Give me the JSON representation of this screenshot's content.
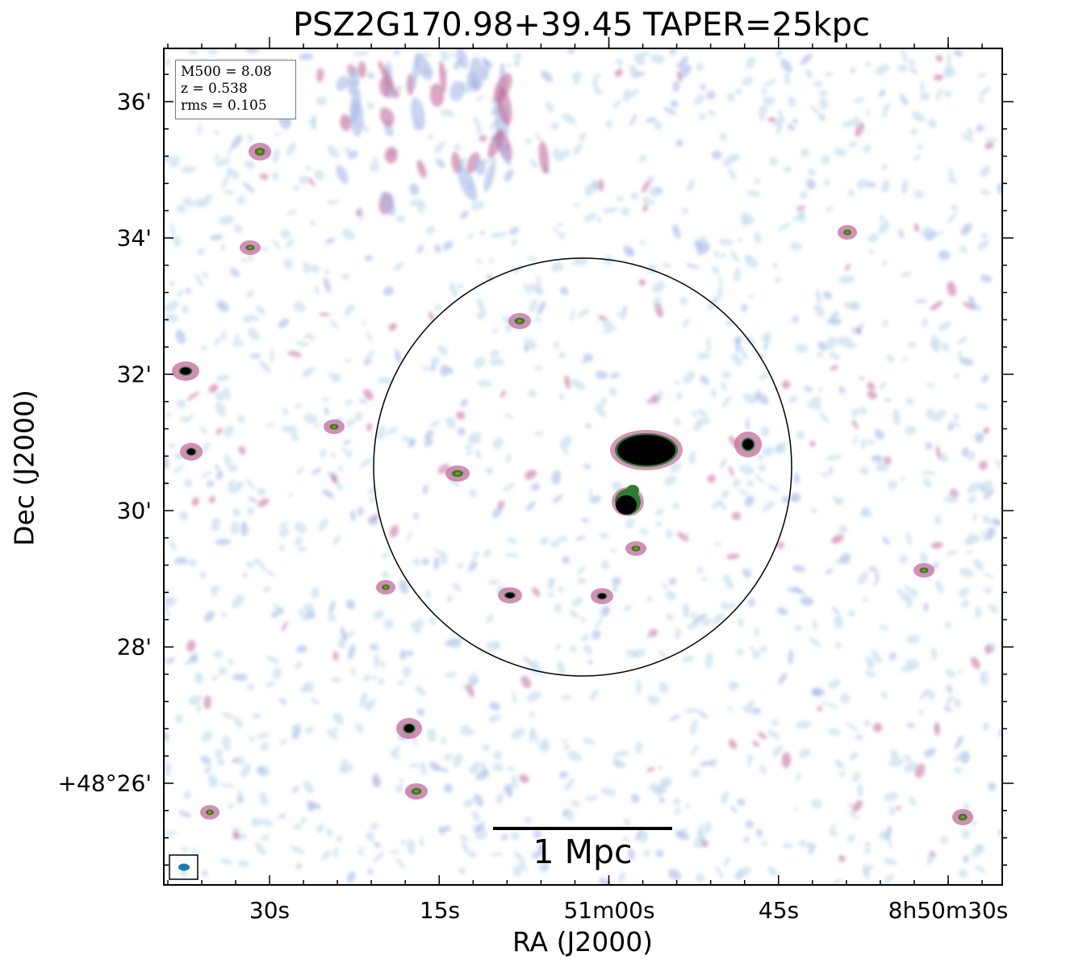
{
  "title": "PSZ2G170.98+39.45 TAPER=25kpc",
  "axes": {
    "xlabel": "RA (J2000)",
    "ylabel": "Dec (J2000)",
    "x_ticks": [
      "30s",
      "15s",
      "51m00s",
      "45s",
      "8h50m30s"
    ],
    "y_ticks": [
      "36'",
      "34'",
      "32'",
      "30'",
      "28'",
      "+48°26'"
    ]
  },
  "info": {
    "m500": "M500 = 8.08",
    "z": "z = 0.538",
    "rms": "rms = 0.105"
  },
  "scalebar": {
    "label": "1 Mpc"
  },
  "colors": {
    "noise_light": "#b9d6e8",
    "noise_blue": "#a8b8e6",
    "noise_pink": "#c26a9a",
    "source_core": "#000000",
    "source_ring": "#2e7d32",
    "beam": "#1f77b4"
  }
}
